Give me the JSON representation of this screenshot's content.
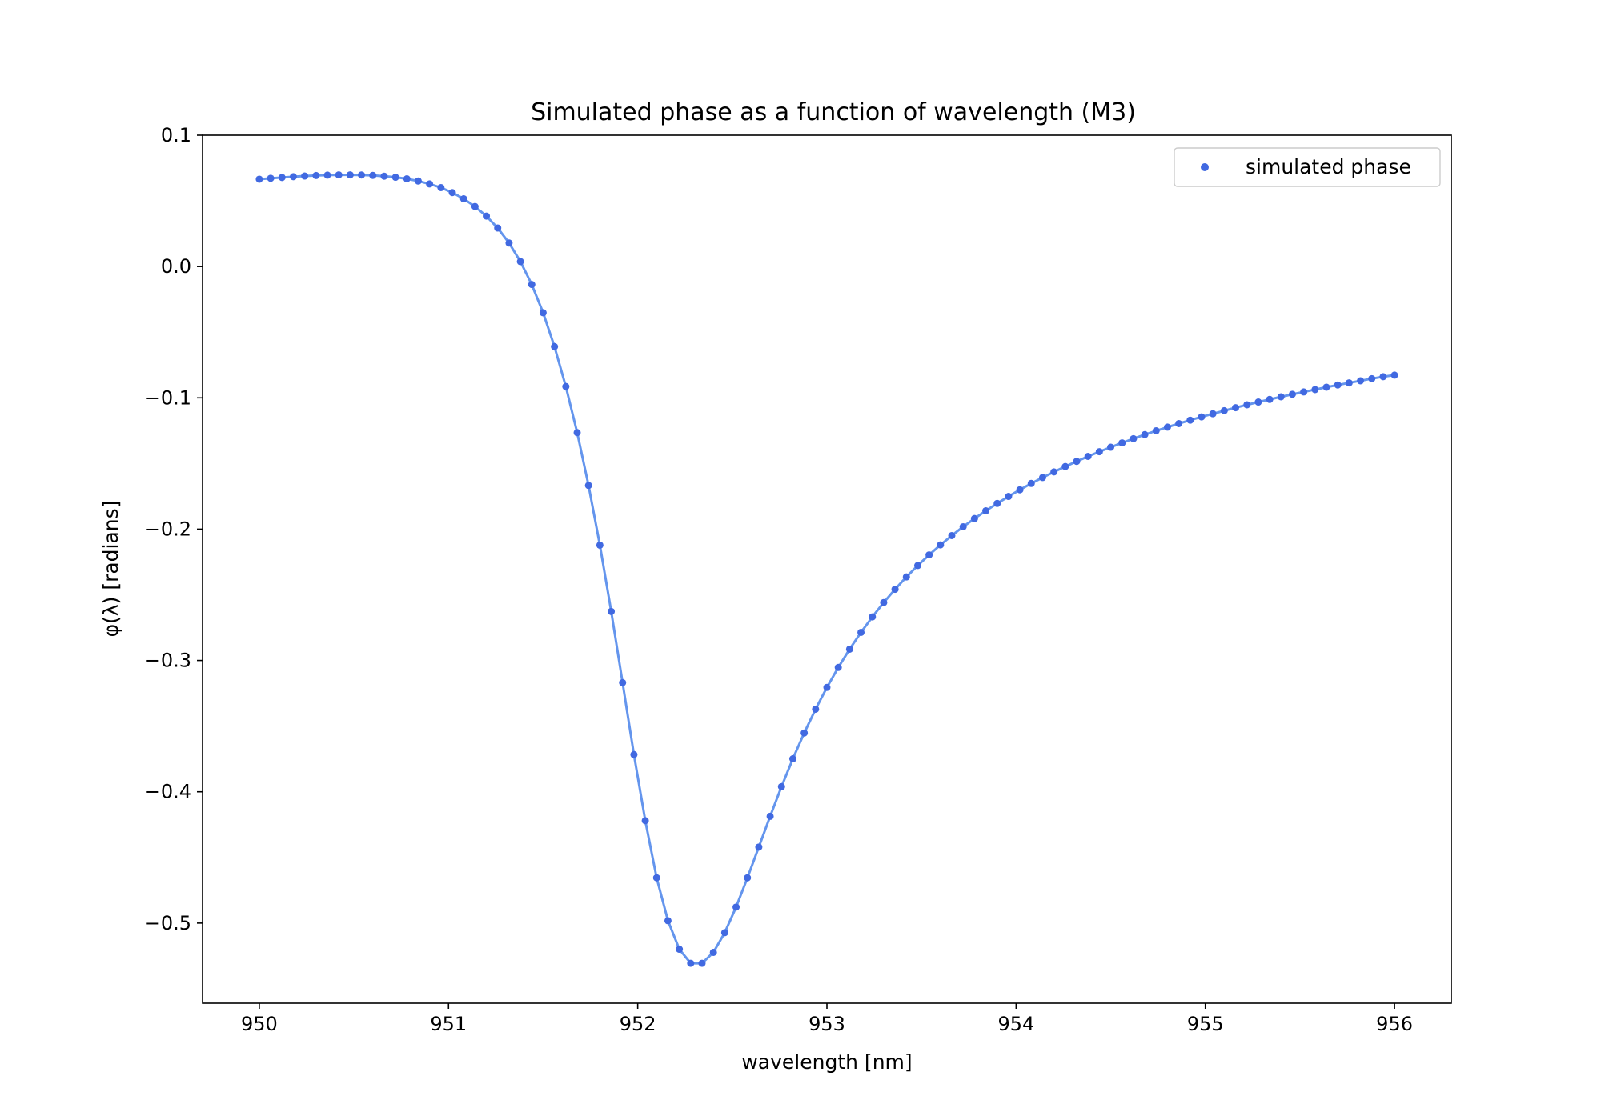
{
  "chart_data": {
    "type": "line",
    "title": "Simulated phase as a function of wavelength (M3)",
    "xlabel": "wavelength [nm]",
    "ylabel": "φ(λ) [radians]",
    "xlim": [
      949.7,
      956.3
    ],
    "ylim": [
      -0.561,
      0.1
    ],
    "xticks": [
      950,
      951,
      952,
      953,
      954,
      955,
      956
    ],
    "xtick_labels": [
      "950",
      "951",
      "952",
      "953",
      "954",
      "955",
      "956"
    ],
    "yticks": [
      0.1,
      0.0,
      -0.1,
      -0.2,
      -0.3,
      -0.4,
      -0.5
    ],
    "ytick_labels": [
      "0.1",
      "0.0",
      "−0.1",
      "−0.2",
      "−0.3",
      "−0.4",
      "−0.5"
    ],
    "grid": false,
    "legend": {
      "position": "top-right",
      "entries": [
        "simulated phase"
      ]
    },
    "series": [
      {
        "name": "simulated phase",
        "line_color": "#6495ed",
        "marker_color": "#4169e1",
        "x": [
          950.0,
          950.06,
          950.12,
          950.18,
          950.24,
          950.3,
          950.36,
          950.42,
          950.48,
          950.54,
          950.6,
          950.66,
          950.72,
          950.78,
          950.84,
          950.9,
          950.96,
          951.02,
          951.08,
          951.14,
          951.2,
          951.26,
          951.32,
          951.38,
          951.44,
          951.5,
          951.56,
          951.62,
          951.68,
          951.74,
          951.8,
          951.86,
          951.92,
          951.98,
          952.04,
          952.1,
          952.16,
          952.22,
          952.28,
          952.34,
          952.4,
          952.46,
          952.52,
          952.58,
          952.64,
          952.7,
          952.76,
          952.82,
          952.88,
          952.94,
          953.0,
          953.06,
          953.12,
          953.18,
          953.24,
          953.3,
          953.36,
          953.42,
          953.48,
          953.54,
          953.6,
          953.66,
          953.72,
          953.78,
          953.84,
          953.9,
          953.96,
          954.02,
          954.08,
          954.14,
          954.2,
          954.26,
          954.32,
          954.38,
          954.44,
          954.5,
          954.56,
          954.62,
          954.68,
          954.74,
          954.8,
          954.86,
          954.92,
          954.98,
          955.04,
          955.1,
          955.16,
          955.22,
          955.28,
          955.34,
          955.4,
          955.46,
          955.52,
          955.58,
          955.64,
          955.7,
          955.76,
          955.82,
          955.88,
          955.94,
          956.0
        ],
        "y": [
          0.0665,
          0.0672,
          0.0678,
          0.0684,
          0.0689,
          0.0693,
          0.0696,
          0.0698,
          0.0698,
          0.0697,
          0.0694,
          0.0688,
          0.068,
          0.0668,
          0.0651,
          0.0629,
          0.0601,
          0.0563,
          0.0516,
          0.0457,
          0.0384,
          0.0293,
          0.0179,
          0.0038,
          -0.0137,
          -0.0352,
          -0.061,
          -0.0914,
          -0.1265,
          -0.1667,
          -0.2122,
          -0.2627,
          -0.3169,
          -0.3717,
          -0.422,
          -0.4655,
          -0.4982,
          -0.5199,
          -0.5306,
          -0.5306,
          -0.5223,
          -0.5073,
          -0.4878,
          -0.4655,
          -0.4421,
          -0.4187,
          -0.3961,
          -0.3749,
          -0.3552,
          -0.3371,
          -0.3205,
          -0.3053,
          -0.2914,
          -0.2786,
          -0.2668,
          -0.2559,
          -0.2458,
          -0.2364,
          -0.2277,
          -0.2196,
          -0.212,
          -0.2049,
          -0.1982,
          -0.1919,
          -0.186,
          -0.1804,
          -0.1751,
          -0.17,
          -0.1652,
          -0.1607,
          -0.1564,
          -0.1523,
          -0.1484,
          -0.1446,
          -0.141,
          -0.1376,
          -0.1343,
          -0.1311,
          -0.128,
          -0.1251,
          -0.1223,
          -0.1196,
          -0.117,
          -0.1145,
          -0.1121,
          -0.1098,
          -0.1075,
          -0.1053,
          -0.1032,
          -0.1012,
          -0.0992,
          -0.0973,
          -0.0955,
          -0.0937,
          -0.0919,
          -0.0902,
          -0.0886,
          -0.087,
          -0.0854,
          -0.0839,
          -0.0827
        ]
      }
    ]
  }
}
